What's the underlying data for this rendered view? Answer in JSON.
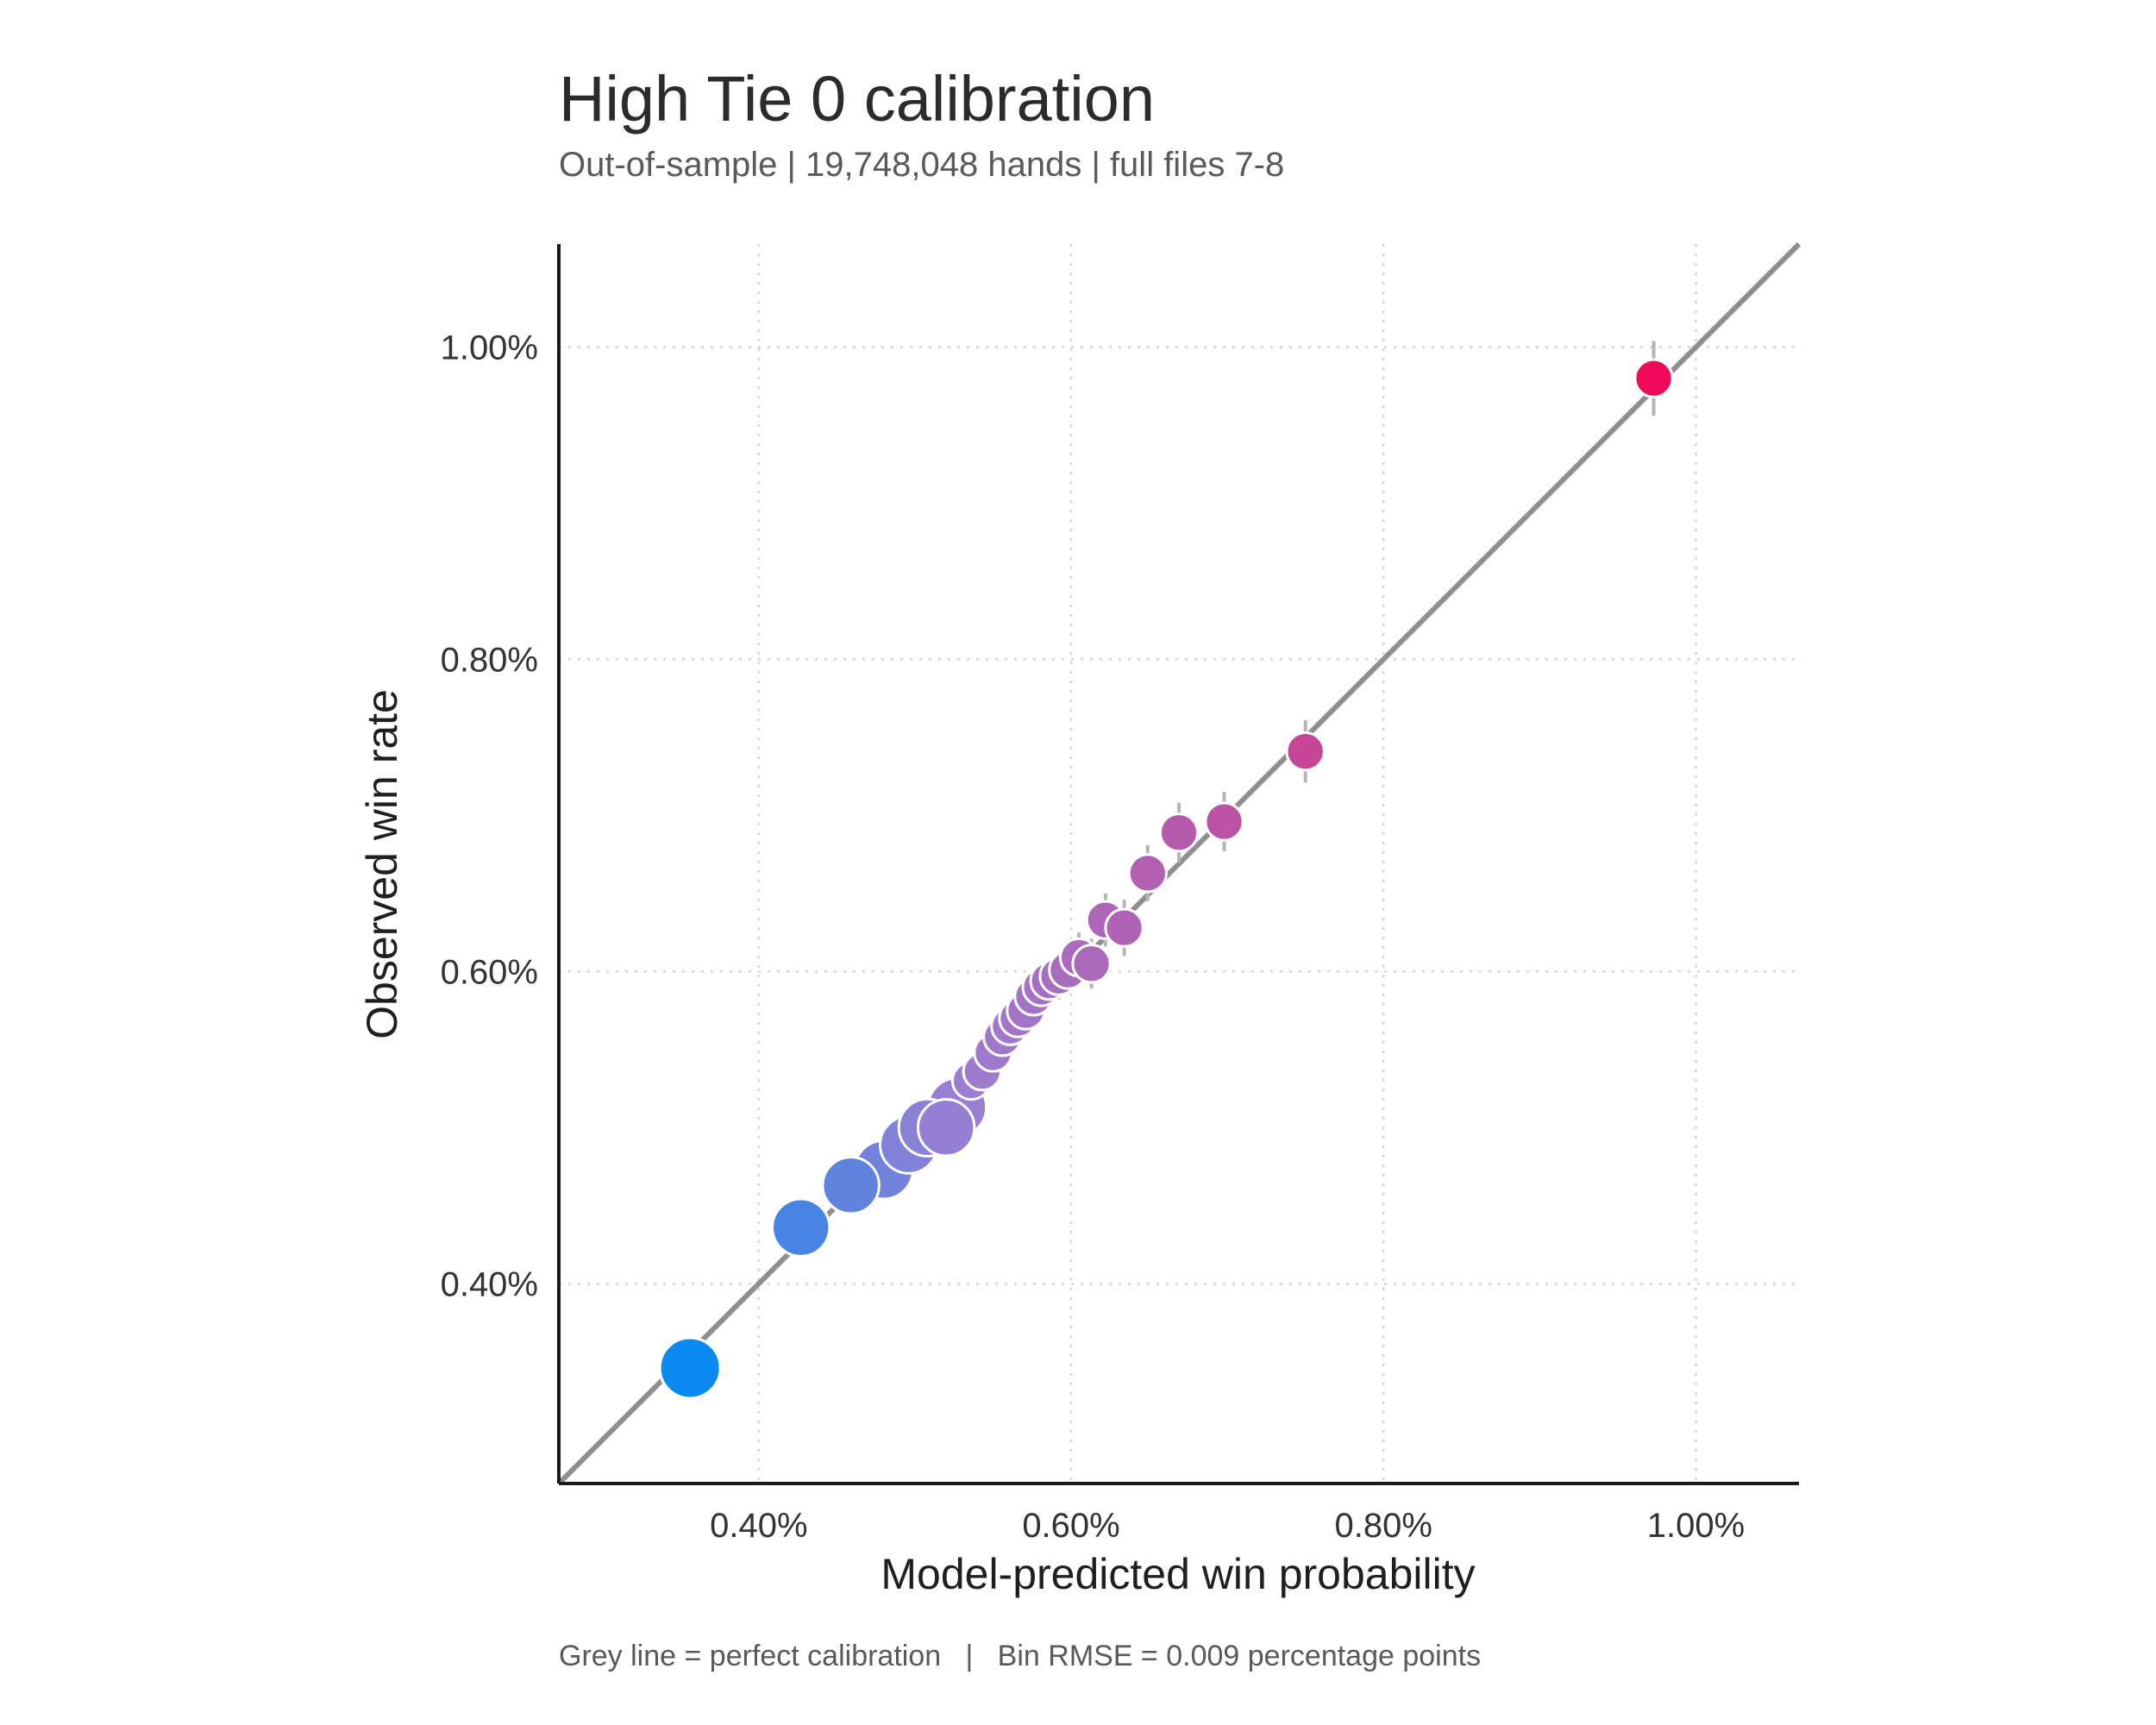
{
  "chart_data": {
    "type": "scatter",
    "title": "High Tie 0 calibration",
    "subtitle": "Out-of-sample | 19,748,048 hands | full files 7-8",
    "xlabel": "Model-predicted win probability",
    "ylabel": "Observed win rate",
    "caption": "Grey line = perfect calibration   |   Bin RMSE = 0.009 percentage points",
    "xlim": [
      0.272,
      1.066
    ],
    "ylim": [
      0.272,
      1.066
    ],
    "x_ticks": [
      {
        "value": 0.4,
        "label": "0.40%"
      },
      {
        "value": 0.6,
        "label": "0.60%"
      },
      {
        "value": 0.8,
        "label": "0.80%"
      },
      {
        "value": 1.0,
        "label": "1.00%"
      }
    ],
    "y_ticks": [
      {
        "value": 0.4,
        "label": "0.40%"
      },
      {
        "value": 0.6,
        "label": "0.60%"
      },
      {
        "value": 0.8,
        "label": "0.80%"
      },
      {
        "value": 1.0,
        "label": "1.00%"
      }
    ],
    "grid": true,
    "reference_line": "y = x",
    "colors": {
      "low": "#0a8af0",
      "mid": "#9b7fd1",
      "high": "#f00a5a",
      "reference_line": "#8f8f8f",
      "error_bar": "#b5b5b5"
    },
    "points": [
      {
        "x": 0.356,
        "y": 0.346,
        "err": 0.006,
        "size": 1.0
      },
      {
        "x": 0.427,
        "y": 0.436,
        "err": 0.006,
        "size": 0.92
      },
      {
        "x": 0.459,
        "y": 0.463,
        "err": 0.006,
        "size": 0.9
      },
      {
        "x": 0.48,
        "y": 0.473,
        "err": 0.006,
        "size": 0.95
      },
      {
        "x": 0.496,
        "y": 0.489,
        "err": 0.006,
        "size": 0.92
      },
      {
        "x": 0.508,
        "y": 0.5,
        "err": 0.006,
        "size": 0.92
      },
      {
        "x": 0.52,
        "y": 0.5,
        "err": 0.006,
        "size": 0.9
      },
      {
        "x": 0.527,
        "y": 0.513,
        "err": 0.006,
        "size": 0.95
      },
      {
        "x": 0.536,
        "y": 0.53,
        "err": 0.007,
        "size": 0.42
      },
      {
        "x": 0.543,
        "y": 0.536,
        "err": 0.008,
        "size": 0.42
      },
      {
        "x": 0.55,
        "y": 0.548,
        "err": 0.009,
        "size": 0.42
      },
      {
        "x": 0.556,
        "y": 0.558,
        "err": 0.01,
        "size": 0.42
      },
      {
        "x": 0.561,
        "y": 0.565,
        "err": 0.011,
        "size": 0.42
      },
      {
        "x": 0.566,
        "y": 0.57,
        "err": 0.012,
        "size": 0.42
      },
      {
        "x": 0.571,
        "y": 0.575,
        "err": 0.013,
        "size": 0.42
      },
      {
        "x": 0.576,
        "y": 0.584,
        "err": 0.013,
        "size": 0.42
      },
      {
        "x": 0.581,
        "y": 0.59,
        "err": 0.014,
        "size": 0.42
      },
      {
        "x": 0.586,
        "y": 0.594,
        "err": 0.014,
        "size": 0.42
      },
      {
        "x": 0.592,
        "y": 0.597,
        "err": 0.015,
        "size": 0.42
      },
      {
        "x": 0.598,
        "y": 0.601,
        "err": 0.015,
        "size": 0.42
      },
      {
        "x": 0.605,
        "y": 0.609,
        "err": 0.016,
        "size": 0.42
      },
      {
        "x": 0.613,
        "y": 0.605,
        "err": 0.016,
        "size": 0.42
      },
      {
        "x": 0.622,
        "y": 0.633,
        "err": 0.017,
        "size": 0.42
      },
      {
        "x": 0.634,
        "y": 0.628,
        "err": 0.018,
        "size": 0.42
      },
      {
        "x": 0.649,
        "y": 0.663,
        "err": 0.018,
        "size": 0.42
      },
      {
        "x": 0.669,
        "y": 0.689,
        "err": 0.019,
        "size": 0.42
      },
      {
        "x": 0.698,
        "y": 0.696,
        "err": 0.019,
        "size": 0.42
      },
      {
        "x": 0.75,
        "y": 0.741,
        "err": 0.02,
        "size": 0.42
      },
      {
        "x": 0.973,
        "y": 0.98,
        "err": 0.024,
        "size": 0.42
      }
    ]
  }
}
